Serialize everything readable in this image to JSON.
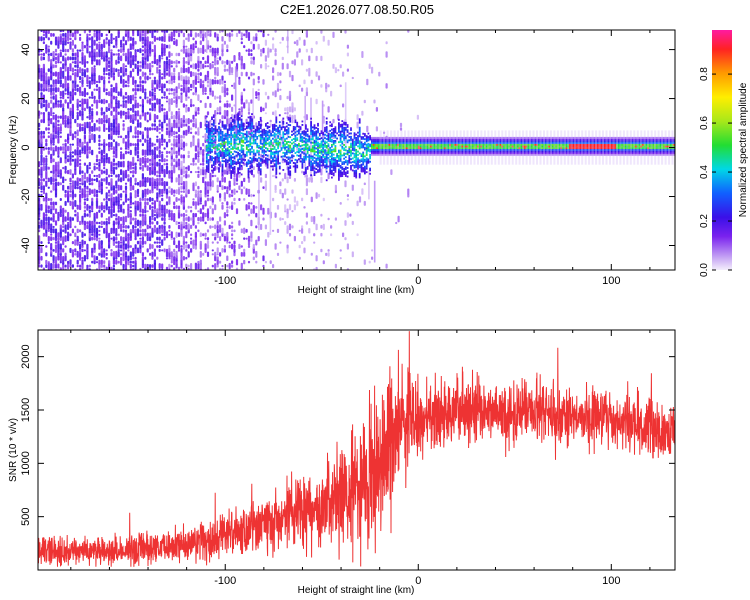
{
  "title": "C2E1.2026.077.08.50.R05",
  "chart_data": [
    {
      "type": "heatmap",
      "name": "spectrogram",
      "xlabel": "Height of straight line (km)",
      "ylabel": "Frequency (Hz)",
      "xlim": [
        -197,
        133
      ],
      "ylim": [
        -50,
        48
      ],
      "xticks": [
        -100,
        0,
        100
      ],
      "xtick_labels": [
        "-100",
        "0",
        "100"
      ],
      "yticks": [
        -40,
        -20,
        0,
        20,
        40
      ],
      "ytick_labels": [
        "-40",
        "-20",
        "0",
        "20",
        "40"
      ],
      "colorbar": {
        "label": "Normalized spectral amplitude",
        "range": [
          0.0,
          0.98
        ],
        "ticks": [
          0.0,
          0.2,
          0.4,
          0.6,
          0.8
        ],
        "tick_labels": [
          "0.0",
          "0.2",
          "0.4",
          "0.6",
          "0.8"
        ]
      },
      "description_points": {
        "noise_region_x": [
          -197,
          -30
        ],
        "tone_start_x": -110,
        "tone_frequency_hz": 0,
        "peak_segment_x": [
          78,
          102
        ],
        "peak_amplitude": 0.92
      }
    },
    {
      "type": "line",
      "name": "snr",
      "xlabel": "Height of straight line (km)",
      "ylabel": "SNR (10 * v/v)",
      "xlim": [
        -197,
        133
      ],
      "ylim": [
        0,
        2250
      ],
      "xticks": [
        -100,
        0,
        100
      ],
      "xtick_labels": [
        "-100",
        "0",
        "100"
      ],
      "yticks": [
        500,
        1000,
        1500,
        2000
      ],
      "ytick_labels": [
        "500",
        "1000",
        "1500",
        "2000"
      ],
      "color": "#ee3333",
      "trend": {
        "x": [
          -197,
          -160,
          -130,
          -110,
          -90,
          -75,
          -60,
          -50,
          -40,
          -30,
          -25,
          -20,
          -15,
          -10,
          0,
          10,
          20,
          30,
          40,
          50,
          60,
          70,
          80,
          90,
          100,
          110,
          120,
          133
        ],
        "y": [
          180,
          170,
          210,
          290,
          380,
          480,
          560,
          600,
          700,
          800,
          900,
          1050,
          1200,
          1300,
          1400,
          1450,
          1480,
          1500,
          1460,
          1440,
          1500,
          1470,
          1450,
          1430,
          1420,
          1380,
          1350,
          1300
        ]
      },
      "noise_amplitude": {
        "x": [
          -197,
          -130,
          -90,
          -60,
          -40,
          -30,
          -20,
          -10,
          0,
          30,
          80,
          133
        ],
        "y": [
          120,
          130,
          200,
          300,
          420,
          500,
          600,
          500,
          350,
          260,
          240,
          250
        ]
      }
    }
  ]
}
